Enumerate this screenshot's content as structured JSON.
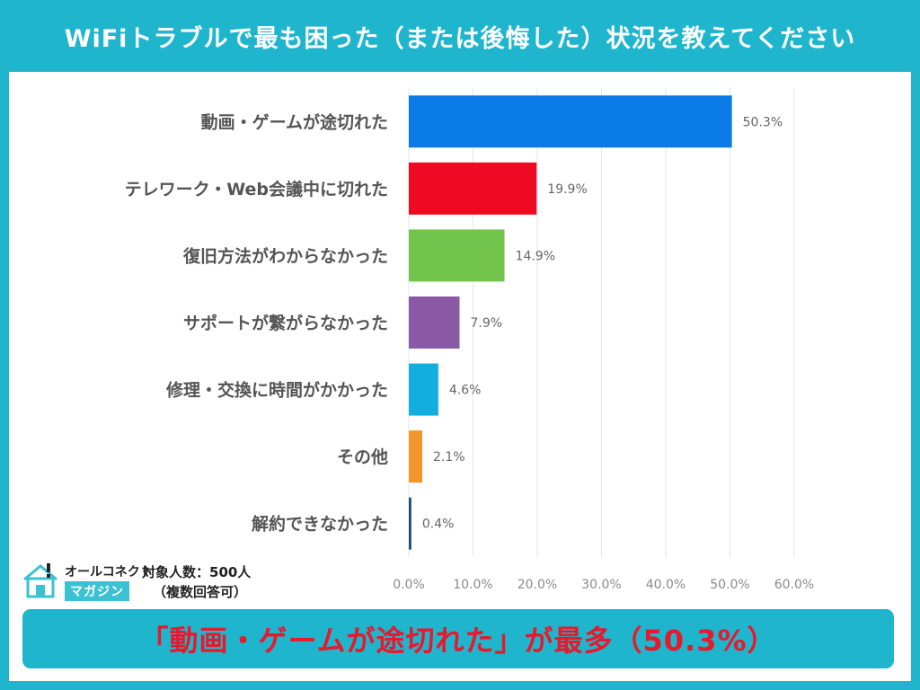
{
  "title": "WiFiトラブルで最も困った（または後悔した）状況を教えてください",
  "footnote": {
    "logo_top": "オールコネクト",
    "logo_bottom": "マガジン",
    "respondents": "対象人数：500人",
    "multiple": "（複数回答可）"
  },
  "callout": "「動画・ゲームが途切れた」が最多（50.3%）",
  "colors": {
    "background": "#1fb5cc",
    "callout_text": "#e8192c"
  },
  "chart_data": {
    "type": "bar",
    "orientation": "horizontal",
    "categories": [
      "動画・ゲームが途切れた",
      "テレワーク・Web会議中に切れた",
      "復旧方法がわからなかった",
      "サポートが繋がらなかった",
      "修理・交換に時間がかかった",
      "その他",
      "解約できなかった"
    ],
    "values": [
      50.3,
      19.9,
      14.9,
      7.9,
      4.6,
      2.1,
      0.4
    ],
    "value_labels": [
      "50.3%",
      "19.9%",
      "14.9%",
      "7.9%",
      "4.6%",
      "2.1%",
      "0.4%"
    ],
    "colors": [
      "#0a7ae6",
      "#ee0a22",
      "#72c44c",
      "#8a5aa6",
      "#11aee0",
      "#f2952b",
      "#1f4e79"
    ],
    "xlim": [
      0,
      60
    ],
    "ticks": [
      0,
      10,
      20,
      30,
      40,
      50,
      60
    ],
    "tick_labels": [
      "0.0%",
      "10.0%",
      "20.0%",
      "30.0%",
      "40.0%",
      "50.0%",
      "60.0%"
    ],
    "grid": true,
    "legend": "none"
  }
}
